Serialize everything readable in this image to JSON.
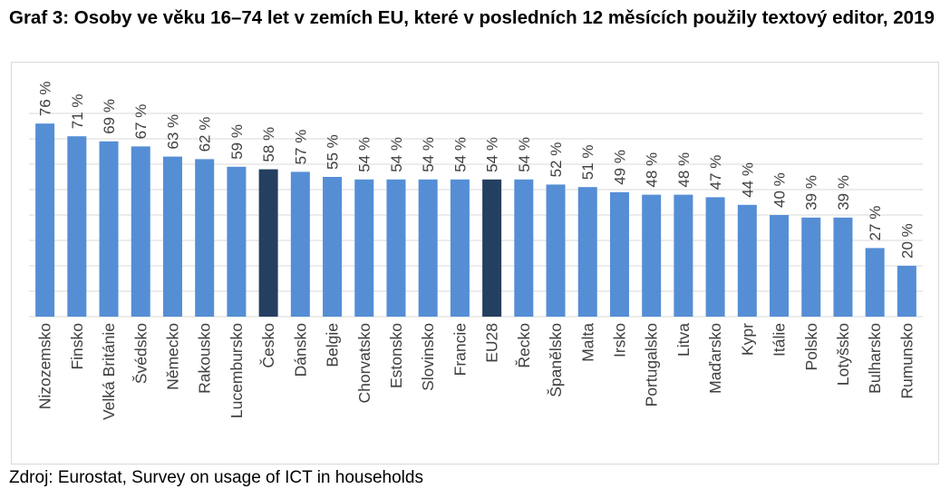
{
  "title": "Graf 3: Osoby ve věku 16–74 let v zemích EU, které v posledních 12 měsících použily textový editor, 2019",
  "source": "Zdroj: Eurostat, Survey on usage of ICT in households",
  "colors": {
    "bar": "#558ed5",
    "highlight": "#243f60",
    "grid": "#d9d9d9",
    "label": "#404040"
  },
  "chart_data": {
    "type": "bar",
    "categories": [
      "Nizozemsko",
      "Finsko",
      "Velká Británie",
      "Švédsko",
      "Německo",
      "Rakousko",
      "Lucembursko",
      "Česko",
      "Dánsko",
      "Belgie",
      "Chorvatsko",
      "Estonsko",
      "Slovinsko",
      "Francie",
      "EU28",
      "Řecko",
      "Španělsko",
      "Malta",
      "Irsko",
      "Portugalsko",
      "Litva",
      "Maďarsko",
      "Kypr",
      "Itálie",
      "Polsko",
      "Lotyšsko",
      "Bulharsko",
      "Rumunsko"
    ],
    "values": [
      76,
      71,
      69,
      67,
      63,
      62,
      59,
      58,
      57,
      55,
      54,
      54,
      54,
      54,
      54,
      54,
      52,
      51,
      49,
      48,
      48,
      47,
      44,
      40,
      39,
      39,
      27,
      20
    ],
    "value_labels": [
      "76 %",
      "71 %",
      "69 %",
      "67 %",
      "63 %",
      "62 %",
      "59 %",
      "58 %",
      "57 %",
      "55 %",
      "54 %",
      "54 %",
      "54 %",
      "54 %",
      "54 %",
      "54 %",
      "52 %",
      "51 %",
      "49 %",
      "48 %",
      "48 %",
      "47 %",
      "44 %",
      "40 %",
      "39 %",
      "39 %",
      "27 %",
      "20 %"
    ],
    "highlighted": [
      "Česko",
      "EU28"
    ],
    "ylim": [
      0,
      80
    ],
    "grid_step": 10,
    "grid": true,
    "legend": "none"
  }
}
